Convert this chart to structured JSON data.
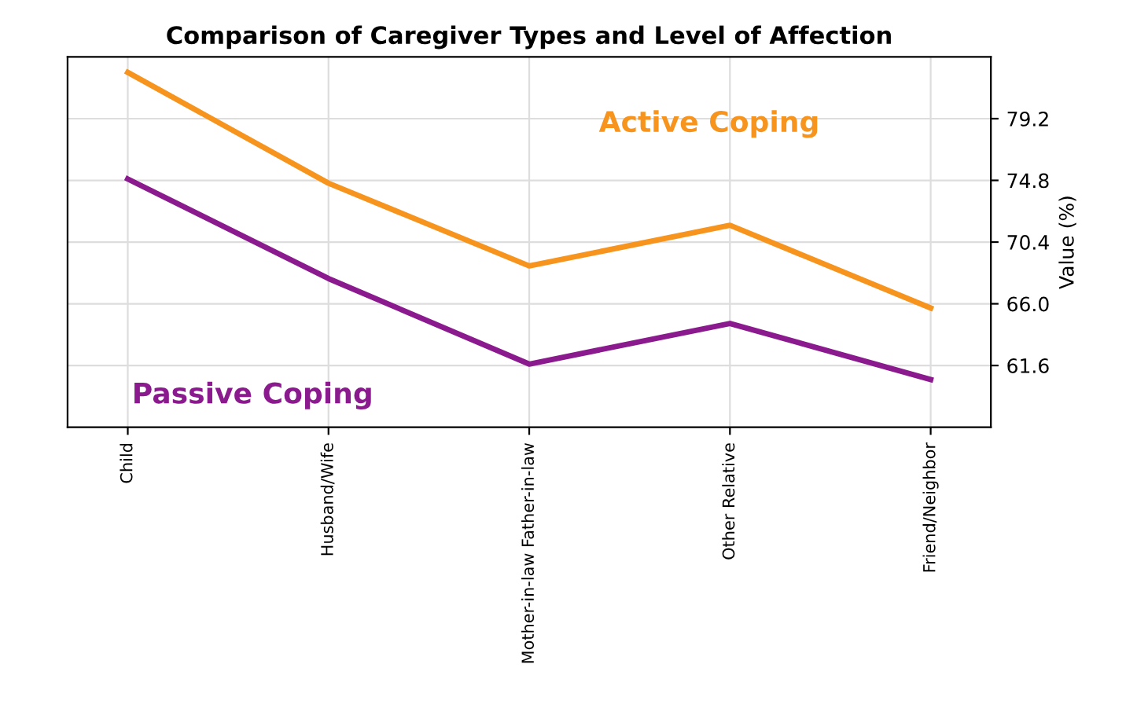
{
  "chart_data": {
    "type": "line",
    "title": "Comparison of Caregiver Types and Level of Affection",
    "ylabel": "Value (%)",
    "categories": [
      "Child",
      "Husband/Wife",
      "Mother-in-law Father-in-law",
      "Other Relative",
      "Friend/Neighbor"
    ],
    "series": [
      {
        "name": "Active Coping",
        "color": "#f7941d",
        "values": [
          82.5,
          74.6,
          68.7,
          71.6,
          65.7
        ]
      },
      {
        "name": "Passive Coping",
        "color": "#8b1a8f",
        "values": [
          74.9,
          67.8,
          61.7,
          64.6,
          60.6
        ]
      }
    ],
    "ylim": [
      57.2,
      83.6
    ],
    "yticks": [
      61.6,
      {
        "value": 66,
        "label": "66.0"
      },
      70.4,
      74.8,
      79.2
    ],
    "grid": true,
    "legend": false
  }
}
